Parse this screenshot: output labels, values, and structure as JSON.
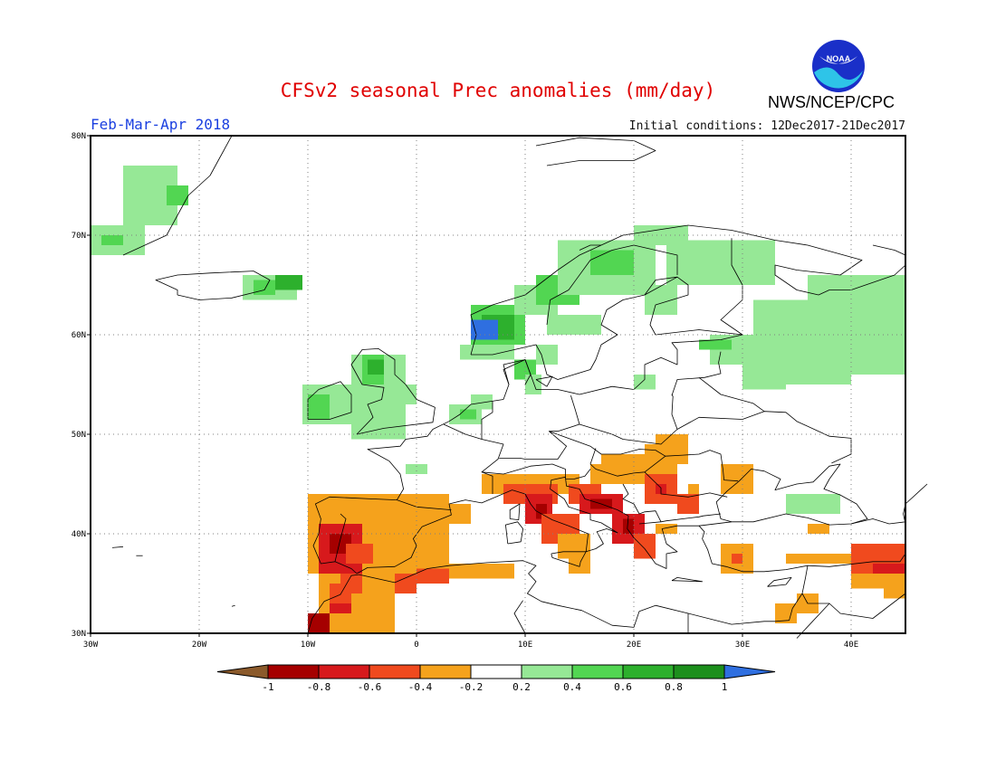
{
  "title": "CFSv2 seasonal Prec anomalies (mm/day)",
  "period": "Feb-Mar-Apr 2018",
  "initial_conditions": "Initial conditions: 12Dec2017-21Dec2017",
  "agency": "NWS/NCEP/CPC",
  "logo_text": "NOAA",
  "map": {
    "lon_range": [
      -30,
      45
    ],
    "lat_range": [
      30,
      80
    ],
    "lon_ticks": [
      "30W",
      "20W",
      "10W",
      "0",
      "10E",
      "20E",
      "30E",
      "40E"
    ],
    "lat_ticks": [
      "80N",
      "70N",
      "60N",
      "50N",
      "40N",
      "30N"
    ],
    "gridlines": true
  },
  "colorbar": {
    "labels": [
      "-1",
      "-0.8",
      "-0.6",
      "-0.4",
      "-0.2",
      "0.2",
      "0.4",
      "0.6",
      "0.8",
      "1"
    ],
    "colors": {
      "lt_-1": "#8b5a2b",
      "-1_-0.8": "#a50000",
      "-0.8_-0.6": "#d7191c",
      "-0.6_-0.4": "#f04a1e",
      "-0.4_-0.2": "#f5a21c",
      "-0.2_0.2": "#ffffff",
      "0.2_0.4": "#96e896",
      "0.4_0.6": "#52d652",
      "0.6_0.8": "#2db02d",
      "0.8_1": "#1c8f1c",
      "gt_1": "#2f6fe0"
    }
  }
}
